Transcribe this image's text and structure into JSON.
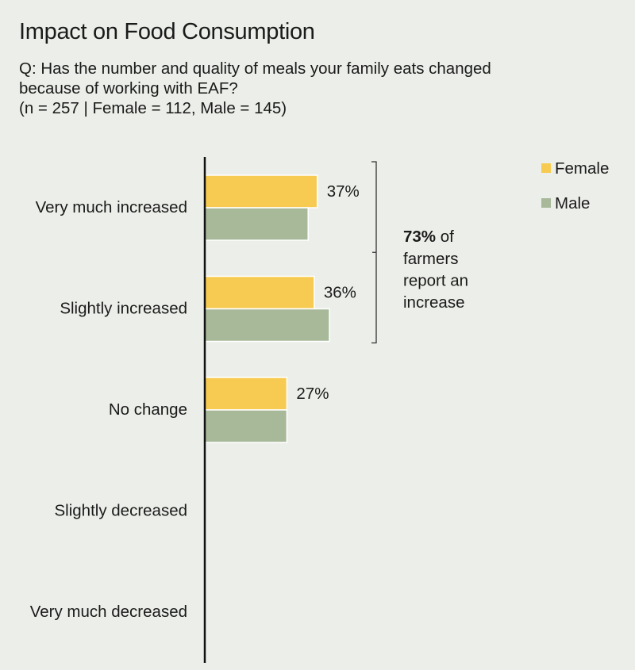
{
  "header": {
    "title": "Impact on Food Consumption",
    "question_line1": "Q: Has the number and quality of meals your family eats changed",
    "question_line2": "because of working with EAF?",
    "sample_line": "(n = 257 | Female = 112, Male = 145)"
  },
  "chart_data": {
    "type": "bar",
    "orientation": "horizontal",
    "categories": [
      "Very much increased",
      "Slightly increased",
      "No change",
      "Slightly decreased",
      "Very much decreased"
    ],
    "series": [
      {
        "name": "Female",
        "color": "#f7cb51",
        "values": [
          37,
          36,
          27,
          0,
          0
        ]
      },
      {
        "name": "Male",
        "color": "#a8b99a",
        "values": [
          34,
          41,
          27,
          0,
          0
        ]
      }
    ],
    "data_labels": [
      "37%",
      "36%",
      "27%"
    ],
    "legend": {
      "placement": "top-right",
      "items": [
        "Female",
        "Male"
      ]
    },
    "annotation": {
      "bold": "73%",
      "rest": " of",
      "lines": [
        "farmers",
        "report an",
        "increase"
      ]
    },
    "xlim": [
      0,
      100
    ],
    "grid": false
  }
}
